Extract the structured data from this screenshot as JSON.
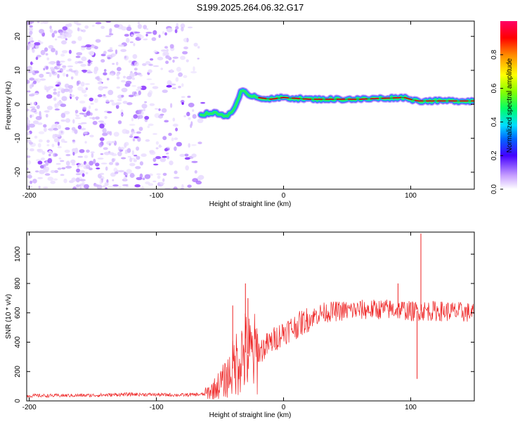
{
  "figure_title": "S199.2025.264.06.32.G17",
  "chart_data": [
    {
      "type": "heatmap",
      "id": "spectrogram",
      "xlabel": "Height of straight line (km)",
      "ylabel": "Frequency (Hz)",
      "xlim": [
        -202,
        150
      ],
      "ylim": [
        -25,
        24.5
      ],
      "xticks": [
        -200,
        -100,
        0,
        100
      ],
      "yticks": [
        -20,
        -10,
        0,
        10,
        20
      ],
      "ridge": {
        "description": "dominant frequency track",
        "points": [
          [
            -65,
            -3
          ],
          [
            -55,
            -2.5
          ],
          [
            -45,
            -3.5
          ],
          [
            -38,
            -1
          ],
          [
            -33,
            4
          ],
          [
            -28,
            3
          ],
          [
            -20,
            2
          ],
          [
            -10,
            1.5
          ],
          [
            0,
            2
          ],
          [
            20,
            1.5
          ],
          [
            40,
            1.5
          ],
          [
            60,
            1.5
          ],
          [
            80,
            1.8
          ],
          [
            95,
            2
          ],
          [
            105,
            1
          ],
          [
            120,
            1
          ],
          [
            150,
            1
          ]
        ]
      },
      "noise_region": [
        -202,
        -60
      ],
      "colorbar": {
        "label": "Normalized spectral amplitude",
        "ticks": [
          0.0,
          0.2,
          0.4,
          0.6,
          0.8
        ],
        "range": [
          0,
          1
        ]
      }
    },
    {
      "type": "line",
      "id": "snr",
      "xlabel": "Height of straight line (km)",
      "ylabel": "SNR (10 * v/v)",
      "xlim": [
        -202,
        150
      ],
      "ylim": [
        0,
        1150
      ],
      "xticks": [
        -200,
        -100,
        0,
        100
      ],
      "yticks": [
        0,
        200,
        400,
        600,
        800,
        1000
      ],
      "color": "#ee2222",
      "envelope": [
        [
          -202,
          35
        ],
        [
          -150,
          38
        ],
        [
          -120,
          45
        ],
        [
          -80,
          40
        ],
        [
          -62,
          45
        ],
        [
          -55,
          80
        ],
        [
          -45,
          150
        ],
        [
          -40,
          220
        ],
        [
          -35,
          300
        ],
        [
          -30,
          330
        ],
        [
          -25,
          310
        ],
        [
          -20,
          330
        ],
        [
          -10,
          400
        ],
        [
          0,
          470
        ],
        [
          10,
          510
        ],
        [
          20,
          560
        ],
        [
          30,
          600
        ],
        [
          40,
          610
        ],
        [
          60,
          620
        ],
        [
          80,
          625
        ],
        [
          95,
          620
        ],
        [
          100,
          610
        ],
        [
          110,
          615
        ],
        [
          130,
          610
        ],
        [
          150,
          600
        ]
      ],
      "spikes": [
        [
          -40,
          650
        ],
        [
          -30,
          800
        ],
        [
          -28,
          700
        ],
        [
          90,
          800
        ],
        [
          108,
          1140
        ],
        [
          105,
          150
        ]
      ]
    }
  ]
}
